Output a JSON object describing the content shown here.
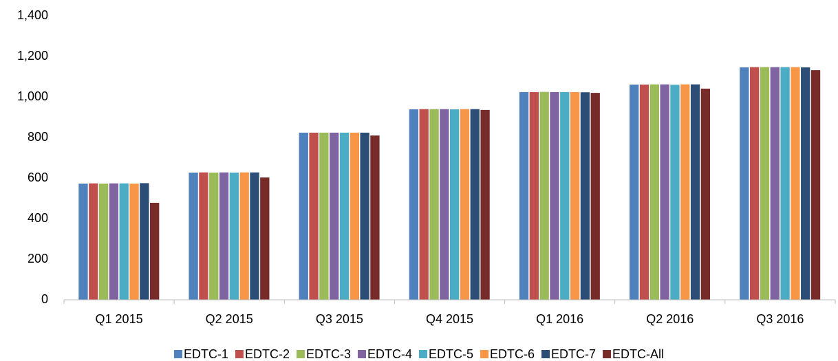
{
  "chart_data": {
    "type": "bar",
    "categories": [
      "Q1 2015",
      "Q2 2015",
      "Q3 2015",
      "Q4 2015",
      "Q1 2016",
      "Q2 2016",
      "Q3 2016"
    ],
    "series": [
      {
        "name": "EDTC-1",
        "color": "#4f81bd",
        "values": [
          573,
          627,
          824,
          939,
          1024,
          1061,
          1146
        ]
      },
      {
        "name": "EDTC-2",
        "color": "#c0504d",
        "values": [
          574,
          628,
          824,
          940,
          1024,
          1061,
          1147
        ]
      },
      {
        "name": "EDTC-3",
        "color": "#9bbb59",
        "values": [
          573,
          627,
          824,
          940,
          1025,
          1062,
          1147
        ]
      },
      {
        "name": "EDTC-4",
        "color": "#8064a2",
        "values": [
          574,
          628,
          824,
          940,
          1024,
          1062,
          1147
        ]
      },
      {
        "name": "EDTC-5",
        "color": "#4bacc6",
        "values": [
          574,
          627,
          824,
          939,
          1024,
          1060,
          1147
        ]
      },
      {
        "name": "EDTC-6",
        "color": "#f79646",
        "values": [
          573,
          628,
          824,
          940,
          1024,
          1062,
          1147
        ]
      },
      {
        "name": "EDTC-7",
        "color": "#2c4d75",
        "values": [
          575,
          628,
          824,
          940,
          1023,
          1062,
          1146
        ]
      },
      {
        "name": "EDTC-All",
        "color": "#772c2a",
        "values": [
          478,
          603,
          810,
          936,
          1020,
          1041,
          1132
        ]
      }
    ],
    "ylim": [
      0,
      1400
    ],
    "yticks": [
      0,
      200,
      400,
      600,
      800,
      {
        "value": 1000,
        "label": "1,000"
      },
      {
        "value": 1200,
        "label": "1,200"
      },
      {
        "value": 1400,
        "label": "1,400"
      }
    ],
    "grid": false,
    "legend": "bottom"
  }
}
